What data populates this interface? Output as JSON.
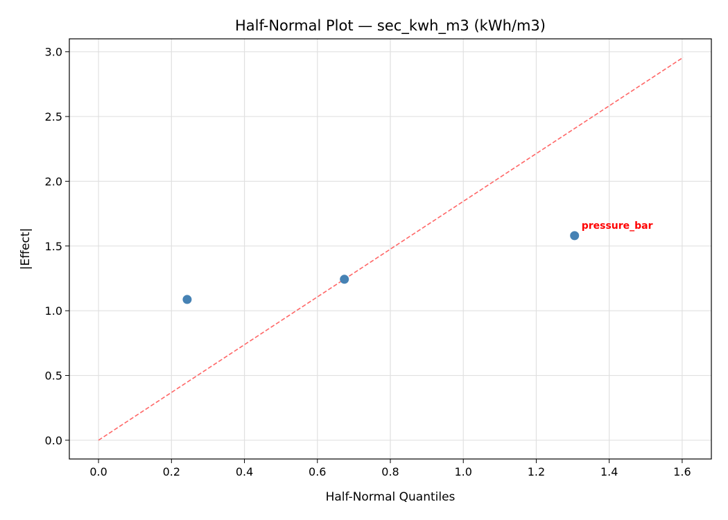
{
  "chart_data": {
    "type": "scatter",
    "title": "Half-Normal Plot — sec_kwh_m3 (kWh/m3)",
    "xlabel": "Half-Normal Quantiles",
    "ylabel": "|Effect|",
    "xlim": [
      -0.08,
      1.68
    ],
    "ylim": [
      -0.145,
      3.1
    ],
    "xticks": [
      0.0,
      0.2,
      0.4,
      0.6,
      0.8,
      1.0,
      1.2,
      1.4,
      1.6
    ],
    "xtick_labels": [
      "0.0",
      "0.2",
      "0.4",
      "0.6",
      "0.8",
      "1.0",
      "1.2",
      "1.4",
      "1.6"
    ],
    "yticks": [
      0.0,
      0.5,
      1.0,
      1.5,
      2.0,
      2.5,
      3.0
    ],
    "ytick_labels": [
      "0.0",
      "0.5",
      "1.0",
      "1.5",
      "2.0",
      "2.5",
      "3.0"
    ],
    "grid": true,
    "points": [
      {
        "x": 0.243,
        "y": 1.087,
        "label": ""
      },
      {
        "x": 0.674,
        "y": 1.243,
        "label": ""
      },
      {
        "x": 1.305,
        "y": 1.58,
        "label": "pressure_bar"
      }
    ],
    "reference_line": {
      "x": [
        0.0,
        1.603
      ],
      "y": [
        0.0,
        2.957
      ],
      "style": "dashed"
    },
    "colors": {
      "points": "#4682b4",
      "reference_line": "#ff6666",
      "annotation": "#ff0000",
      "grid": "#e0e0e0"
    }
  }
}
